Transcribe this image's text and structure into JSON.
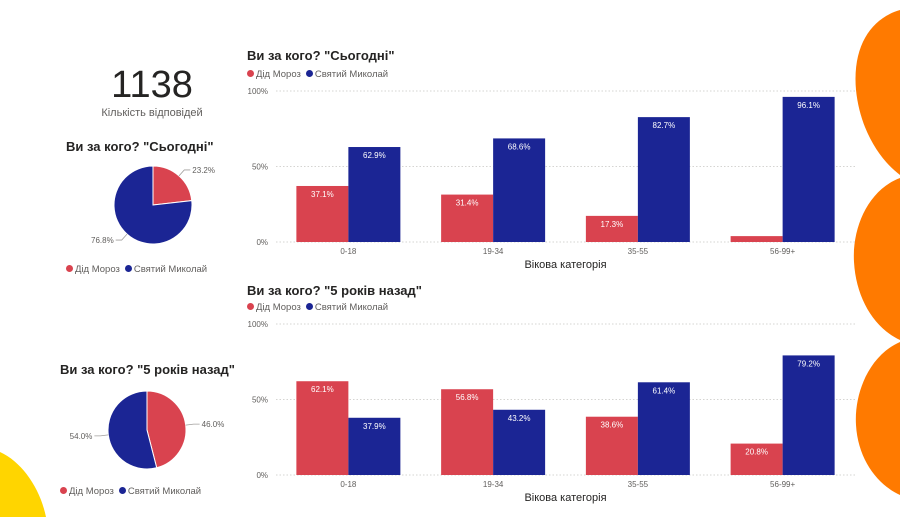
{
  "kpi": {
    "value": "1138",
    "label": "Кількість відповідей"
  },
  "colors": {
    "red": "#d9434f",
    "blue": "#1b2594",
    "orange": "#ff7a00",
    "yellow": "#ffd500"
  },
  "chart_data": [
    {
      "type": "pie",
      "title": "Ви за кого? \"Сьогодні\"",
      "legend": [
        "Дід Мороз",
        "Святий Миколай"
      ],
      "legend_position": "bottom",
      "slices": [
        {
          "name": "Дід Мороз",
          "value": 23.2,
          "label": "23.2%"
        },
        {
          "name": "Святий Миколай",
          "value": 76.8,
          "label": "76.8%"
        }
      ]
    },
    {
      "type": "pie",
      "title": "Ви за кого? \"5 років назад\"",
      "legend": [
        "Дід Мороз",
        "Святий Миколай"
      ],
      "legend_position": "bottom",
      "slices": [
        {
          "name": "Дід Мороз",
          "value": 46.0,
          "label": "46.0%"
        },
        {
          "name": "Святий Миколай",
          "value": 54.0,
          "label": "54.0%"
        }
      ]
    },
    {
      "type": "bar",
      "title": "Ви за кого? \"Сьогодні\"",
      "xlabel": "Вікова категорія",
      "legend_position": "top-left",
      "grid": true,
      "ylim": [
        0,
        100
      ],
      "yticks": [
        "0%",
        "50%",
        "100%"
      ],
      "categories": [
        "0-18",
        "19-34",
        "35-55",
        "56-99+"
      ],
      "series": [
        {
          "name": "Дід Мороз",
          "values": [
            37.1,
            31.4,
            17.3,
            3.9
          ],
          "labels": [
            "37.1%",
            "31.4%",
            "17.3%",
            ""
          ]
        },
        {
          "name": "Святий Миколай",
          "values": [
            62.9,
            68.6,
            82.7,
            96.1
          ],
          "labels": [
            "62.9%",
            "68.6%",
            "82.7%",
            "96.1%"
          ]
        }
      ]
    },
    {
      "type": "bar",
      "title": "Ви за кого? \"5 років назад\"",
      "xlabel": "Вікова категорія",
      "legend_position": "top-left",
      "grid": true,
      "ylim": [
        0,
        100
      ],
      "yticks": [
        "0%",
        "50%",
        "100%"
      ],
      "categories": [
        "0-18",
        "19-34",
        "35-55",
        "56-99+"
      ],
      "series": [
        {
          "name": "Дід Мороз",
          "values": [
            62.1,
            56.8,
            38.6,
            20.8
          ],
          "labels": [
            "62.1%",
            "56.8%",
            "38.6%",
            "20.8%"
          ]
        },
        {
          "name": "Святий Миколай",
          "values": [
            37.9,
            43.2,
            61.4,
            79.2
          ],
          "labels": [
            "37.9%",
            "43.2%",
            "61.4%",
            "79.2%"
          ]
        }
      ]
    }
  ]
}
